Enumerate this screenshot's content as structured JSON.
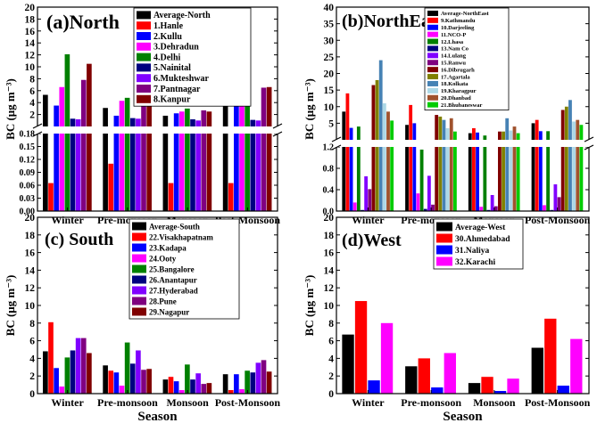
{
  "chart_data": [
    {
      "type": "bar",
      "title": "(a)North",
      "xlabel": "Season",
      "ylabel": "BC (μg m⁻³)",
      "categories": [
        "Winter",
        "Pre-monsoon",
        "Monsoon",
        "Post-Monsoon"
      ],
      "axis_break": {
        "lower": [
          0,
          0.18
        ],
        "upper": [
          0,
          20
        ]
      },
      "lower_yticks": [
        "0.00",
        "0.03",
        "0.06",
        "0.09",
        "0.12",
        "0.15",
        "0.18"
      ],
      "upper_yticks": [
        "2",
        "4",
        "6",
        "8",
        "10",
        "12",
        "14",
        "16",
        "18",
        "20"
      ],
      "series": [
        {
          "name": "Average-North",
          "color": "#000000",
          "values": [
            5.3,
            3.1,
            1.8,
            3.6
          ]
        },
        {
          "name": "1.Hanle",
          "color": "#ff0000",
          "values": [
            0.065,
            0.11,
            0.065,
            0.065
          ]
        },
        {
          "name": "2.Kullu",
          "color": "#0000ff",
          "values": [
            3.5,
            1.8,
            2.2,
            3.6
          ]
        },
        {
          "name": "3.Dehradun",
          "color": "#ff00ff",
          "values": [
            6.6,
            4.3,
            2.5,
            3.4
          ]
        },
        {
          "name": "4.Delhi",
          "color": "#008000",
          "values": [
            12.1,
            4.8,
            3.0,
            7.0
          ]
        },
        {
          "name": "5.Nainital",
          "color": "#000080",
          "values": [
            1.3,
            1.4,
            1.2,
            1.1
          ]
        },
        {
          "name": "6.Mukteshwar",
          "color": "#8000ff",
          "values": [
            1.2,
            1.3,
            1.0,
            1.0
          ]
        },
        {
          "name": "7.Pantnagar",
          "color": "#800080",
          "values": [
            7.8,
            3.8,
            2.7,
            6.5
          ]
        },
        {
          "name": "8.Kanpur",
          "color": "#800000",
          "values": [
            10.5,
            5.5,
            2.5,
            6.6
          ]
        }
      ]
    },
    {
      "type": "bar",
      "title": "(b)NorthEast",
      "xlabel": "",
      "ylabel": "BC (μg m⁻³)",
      "categories": [
        "Winter",
        "Pre-monsoon",
        "Monsoon",
        "Post-Monsoon"
      ],
      "axis_break": {
        "lower": [
          0,
          1.2
        ],
        "upper": [
          0,
          40
        ]
      },
      "lower_yticks": [
        "0.0",
        "0.4",
        "0.8",
        "1.2"
      ],
      "upper_yticks": [
        "5",
        "10",
        "15",
        "20",
        "25",
        "30",
        "35",
        "40"
      ],
      "series": [
        {
          "name": "Average-NorthEast",
          "color": "#000000",
          "values": [
            8.5,
            4.5,
            2.0,
            5.0
          ]
        },
        {
          "name": "9.Kathmandu",
          "color": "#ff0000",
          "values": [
            14.0,
            10.5,
            3.5,
            6.0
          ]
        },
        {
          "name": "10.Darjeeling",
          "color": "#0000ff",
          "values": [
            3.6,
            5.0,
            2.2,
            2.6
          ]
        },
        {
          "name": "11.NCO-P",
          "color": "#ff00ff",
          "values": [
            0.16,
            0.33,
            0.08,
            0.11
          ]
        },
        {
          "name": "12.Lhasa",
          "color": "#008000",
          "values": [
            4.0,
            1.15,
            1.3,
            2.6
          ]
        },
        {
          "name": "13.Nam Co",
          "color": "#000080",
          "values": [
            0.02,
            0.04,
            0.02,
            0.02
          ]
        },
        {
          "name": "14.Lulang",
          "color": "#8000ff",
          "values": [
            0.65,
            0.66,
            0.3,
            0.5
          ]
        },
        {
          "name": "15.Ranwu",
          "color": "#800080",
          "values": [
            0.41,
            0.12,
            0.09,
            0.26
          ]
        },
        {
          "name": "16.Dibrugarh",
          "color": "#800000",
          "values": [
            16.5,
            7.5,
            2.5,
            9.0
          ]
        },
        {
          "name": "17.Agartala",
          "color": "#808000",
          "values": [
            18.0,
            7.0,
            2.5,
            10.0
          ]
        },
        {
          "name": "18.Kolkata",
          "color": "#4682b4",
          "values": [
            24.0,
            6.0,
            6.5,
            12.0
          ]
        },
        {
          "name": "19.Kharagpur",
          "color": "#add8e6",
          "values": [
            11.0,
            3.5,
            2.8,
            5.5
          ]
        },
        {
          "name": "20.Dhanbad",
          "color": "#a0522d",
          "values": [
            8.5,
            6.5,
            4.0,
            6.0
          ]
        },
        {
          "name": "21.Bhubaneswar",
          "color": "#00cc00",
          "values": [
            5.8,
            2.5,
            2.0,
            4.5
          ]
        }
      ]
    },
    {
      "type": "bar",
      "title": "(c) South",
      "xlabel": "Season",
      "ylabel": "BC (μg m⁻³)",
      "categories": [
        "Winter",
        "Pre-monsoon",
        "Monsoon",
        "Post-Monsoon"
      ],
      "ylim": [
        0,
        20
      ],
      "yticks": [
        "0",
        "2",
        "4",
        "6",
        "8",
        "10",
        "12",
        "14",
        "16",
        "18",
        "20"
      ],
      "series": [
        {
          "name": "Average-South",
          "color": "#000000",
          "values": [
            4.8,
            3.2,
            1.6,
            2.2
          ]
        },
        {
          "name": "22.Visakhapatnam",
          "color": "#ff0000",
          "values": [
            8.1,
            2.6,
            1.9,
            0.4
          ]
        },
        {
          "name": "23.Kadapa",
          "color": "#0000ff",
          "values": [
            2.9,
            2.4,
            1.4,
            2.2
          ]
        },
        {
          "name": "24.Ooty",
          "color": "#ff00ff",
          "values": [
            0.8,
            0.9,
            0.4,
            0.5
          ]
        },
        {
          "name": "25.Bangalore",
          "color": "#008000",
          "values": [
            4.1,
            5.8,
            3.3,
            2.6
          ]
        },
        {
          "name": "26.Anantapur",
          "color": "#000080",
          "values": [
            4.9,
            3.4,
            1.6,
            2.4
          ]
        },
        {
          "name": "27.Hyderabad",
          "color": "#8000ff",
          "values": [
            6.3,
            4.9,
            2.3,
            3.5
          ]
        },
        {
          "name": "28.Pune",
          "color": "#800080",
          "values": [
            6.3,
            2.7,
            1.1,
            3.8
          ]
        },
        {
          "name": "29.Nagapur",
          "color": "#800000",
          "values": [
            4.6,
            2.8,
            1.2,
            2.5
          ]
        }
      ]
    },
    {
      "type": "bar",
      "title": "(d)West",
      "xlabel": "Season",
      "ylabel": "BC (μg m⁻³)",
      "categories": [
        "Winter",
        "Pre-monsoon",
        "Monsoon",
        "Post-Monsoon"
      ],
      "ylim": [
        0,
        20
      ],
      "yticks": [
        "0",
        "2",
        "4",
        "6",
        "8",
        "10",
        "12",
        "14",
        "16",
        "18",
        "20"
      ],
      "series": [
        {
          "name": "Average-West",
          "color": "#000000",
          "values": [
            6.7,
            3.1,
            1.2,
            5.2
          ]
        },
        {
          "name": "30.Ahmedabad",
          "color": "#ff0000",
          "values": [
            10.5,
            4.0,
            1.9,
            8.5
          ]
        },
        {
          "name": "31.Naliya",
          "color": "#0000ff",
          "values": [
            1.5,
            0.7,
            0.3,
            0.9
          ]
        },
        {
          "name": "32.Karachi",
          "color": "#ff00ff",
          "values": [
            8.0,
            4.6,
            1.7,
            6.2
          ]
        }
      ]
    }
  ]
}
